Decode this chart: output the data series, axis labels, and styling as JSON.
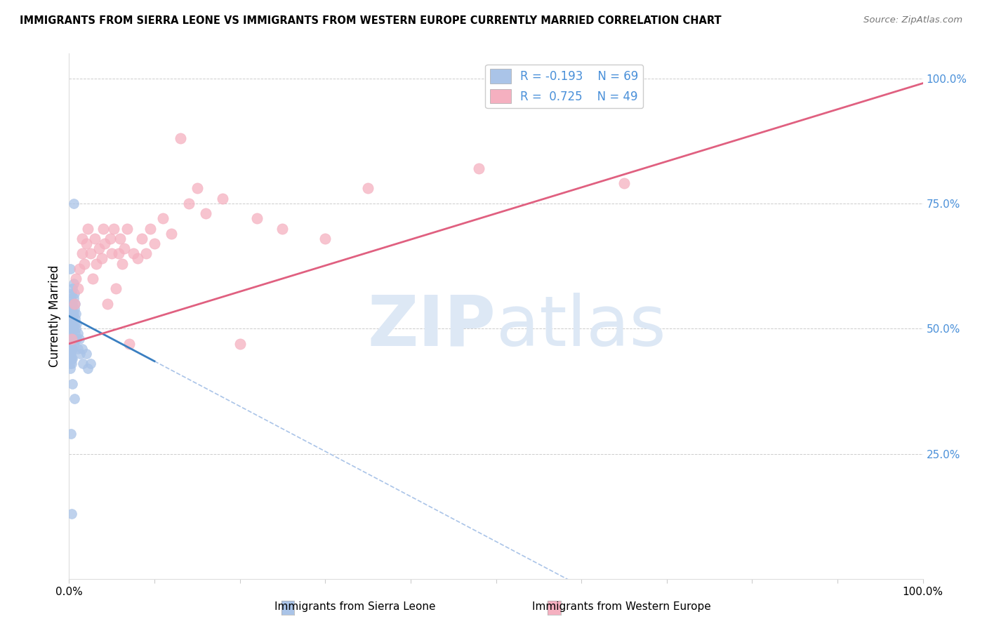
{
  "title": "IMMIGRANTS FROM SIERRA LEONE VS IMMIGRANTS FROM WESTERN EUROPE CURRENTLY MARRIED CORRELATION CHART",
  "source": "Source: ZipAtlas.com",
  "ylabel": "Currently Married",
  "ylabel_right_ticks": [
    "100.0%",
    "75.0%",
    "50.0%",
    "25.0%"
  ],
  "ylabel_right_vals": [
    1.0,
    0.75,
    0.5,
    0.25
  ],
  "blue_color": "#aac4e8",
  "pink_color": "#f5b0c0",
  "blue_line_color": "#3a7fc1",
  "pink_line_color": "#e06080",
  "dash_line_color": "#aac4e8",
  "watermark_zip": "ZIP",
  "watermark_atlas": "atlas",
  "watermark_color": "#dde8f5",
  "sierra_leone_x": [
    0.001,
    0.001,
    0.001,
    0.001,
    0.001,
    0.001,
    0.001,
    0.001,
    0.001,
    0.001,
    0.002,
    0.002,
    0.002,
    0.002,
    0.002,
    0.002,
    0.002,
    0.002,
    0.002,
    0.002,
    0.003,
    0.003,
    0.003,
    0.003,
    0.003,
    0.003,
    0.003,
    0.003,
    0.003,
    0.004,
    0.004,
    0.004,
    0.004,
    0.004,
    0.004,
    0.004,
    0.005,
    0.005,
    0.005,
    0.005,
    0.005,
    0.006,
    0.006,
    0.006,
    0.006,
    0.007,
    0.007,
    0.007,
    0.008,
    0.008,
    0.009,
    0.009,
    0.01,
    0.01,
    0.012,
    0.013,
    0.015,
    0.016,
    0.02,
    0.022,
    0.025,
    0.005,
    0.006,
    0.002,
    0.003,
    0.001,
    0.004
  ],
  "sierra_leone_y": [
    0.52,
    0.5,
    0.48,
    0.47,
    0.46,
    0.45,
    0.44,
    0.43,
    0.42,
    0.53,
    0.55,
    0.54,
    0.52,
    0.5,
    0.49,
    0.48,
    0.46,
    0.45,
    0.44,
    0.56,
    0.57,
    0.55,
    0.53,
    0.51,
    0.5,
    0.48,
    0.46,
    0.44,
    0.43,
    0.58,
    0.55,
    0.53,
    0.5,
    0.48,
    0.46,
    0.44,
    0.59,
    0.56,
    0.53,
    0.5,
    0.47,
    0.57,
    0.54,
    0.51,
    0.48,
    0.55,
    0.52,
    0.49,
    0.53,
    0.5,
    0.51,
    0.48,
    0.49,
    0.46,
    0.48,
    0.45,
    0.46,
    0.43,
    0.45,
    0.42,
    0.43,
    0.75,
    0.36,
    0.29,
    0.13,
    0.62,
    0.39
  ],
  "western_europe_x": [
    0.003,
    0.006,
    0.008,
    0.01,
    0.012,
    0.015,
    0.015,
    0.018,
    0.02,
    0.022,
    0.025,
    0.028,
    0.03,
    0.032,
    0.035,
    0.038,
    0.04,
    0.042,
    0.045,
    0.048,
    0.05,
    0.052,
    0.055,
    0.058,
    0.06,
    0.062,
    0.065,
    0.068,
    0.07,
    0.075,
    0.08,
    0.085,
    0.09,
    0.095,
    0.1,
    0.11,
    0.12,
    0.13,
    0.14,
    0.15,
    0.16,
    0.18,
    0.2,
    0.22,
    0.25,
    0.3,
    0.35,
    0.48,
    0.65
  ],
  "western_europe_y": [
    0.48,
    0.55,
    0.6,
    0.58,
    0.62,
    0.65,
    0.68,
    0.63,
    0.67,
    0.7,
    0.65,
    0.6,
    0.68,
    0.63,
    0.66,
    0.64,
    0.7,
    0.67,
    0.55,
    0.68,
    0.65,
    0.7,
    0.58,
    0.65,
    0.68,
    0.63,
    0.66,
    0.7,
    0.47,
    0.65,
    0.64,
    0.68,
    0.65,
    0.7,
    0.67,
    0.72,
    0.69,
    0.88,
    0.75,
    0.78,
    0.73,
    0.76,
    0.47,
    0.72,
    0.7,
    0.68,
    0.78,
    0.82,
    0.79
  ],
  "xlim": [
    0.0,
    1.0
  ],
  "ylim": [
    0.0,
    1.05
  ],
  "sl_line_x_end": 0.1,
  "sl_intercept": 0.525,
  "sl_slope": -0.9,
  "we_intercept": 0.47,
  "we_slope": 0.52
}
